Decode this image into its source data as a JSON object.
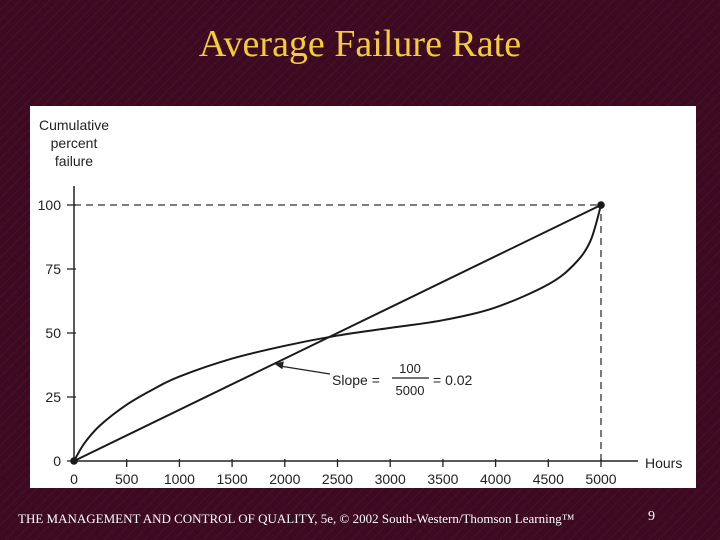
{
  "slide": {
    "title": "Average Failure Rate",
    "footer": "THE MANAGEMENT AND CONTROL OF QUALITY, 5e, © 2002 South-Western/Thomson Learning™",
    "page_number": "9"
  },
  "chart_data": {
    "type": "line",
    "title": "",
    "ylabel": [
      "Cumulative",
      "percent",
      "failure"
    ],
    "xlabel": "Hours",
    "xlim": [
      0,
      5000
    ],
    "ylim": [
      0,
      100
    ],
    "x_ticks": [
      0,
      500,
      1000,
      1500,
      2000,
      2500,
      3000,
      3500,
      4000,
      4500,
      5000
    ],
    "y_ticks": [
      0,
      25,
      50,
      75,
      100
    ],
    "series": [
      {
        "values_x": [
          0,
          5000
        ],
        "values_y": [
          0,
          100
        ]
      },
      {
        "values_x": [
          0,
          100,
          250,
          500,
          750,
          1000,
          1500,
          2000,
          2500,
          3000,
          3500,
          4000,
          4500,
          4750,
          4900,
          5000
        ],
        "values_y": [
          0,
          7,
          14,
          22,
          28,
          33,
          40,
          45,
          49,
          52,
          55,
          60,
          69,
          77,
          86,
          100
        ]
      }
    ],
    "reference_lines": [
      {
        "type": "horizontal",
        "y": 100,
        "x_from": 0,
        "x_to": 5000,
        "style": "dashed"
      },
      {
        "type": "vertical",
        "x": 5000,
        "y_from": 0,
        "y_to": 100,
        "style": "dashed"
      }
    ],
    "points": [
      {
        "x": 0,
        "y": 0
      },
      {
        "x": 5000,
        "y": 100
      }
    ],
    "annotation": {
      "prefix": "Slope =",
      "numerator": "100",
      "denominator": "5000",
      "suffix": "= 0.02",
      "arrow_target": {
        "x": 1900,
        "y": 38
      }
    }
  }
}
